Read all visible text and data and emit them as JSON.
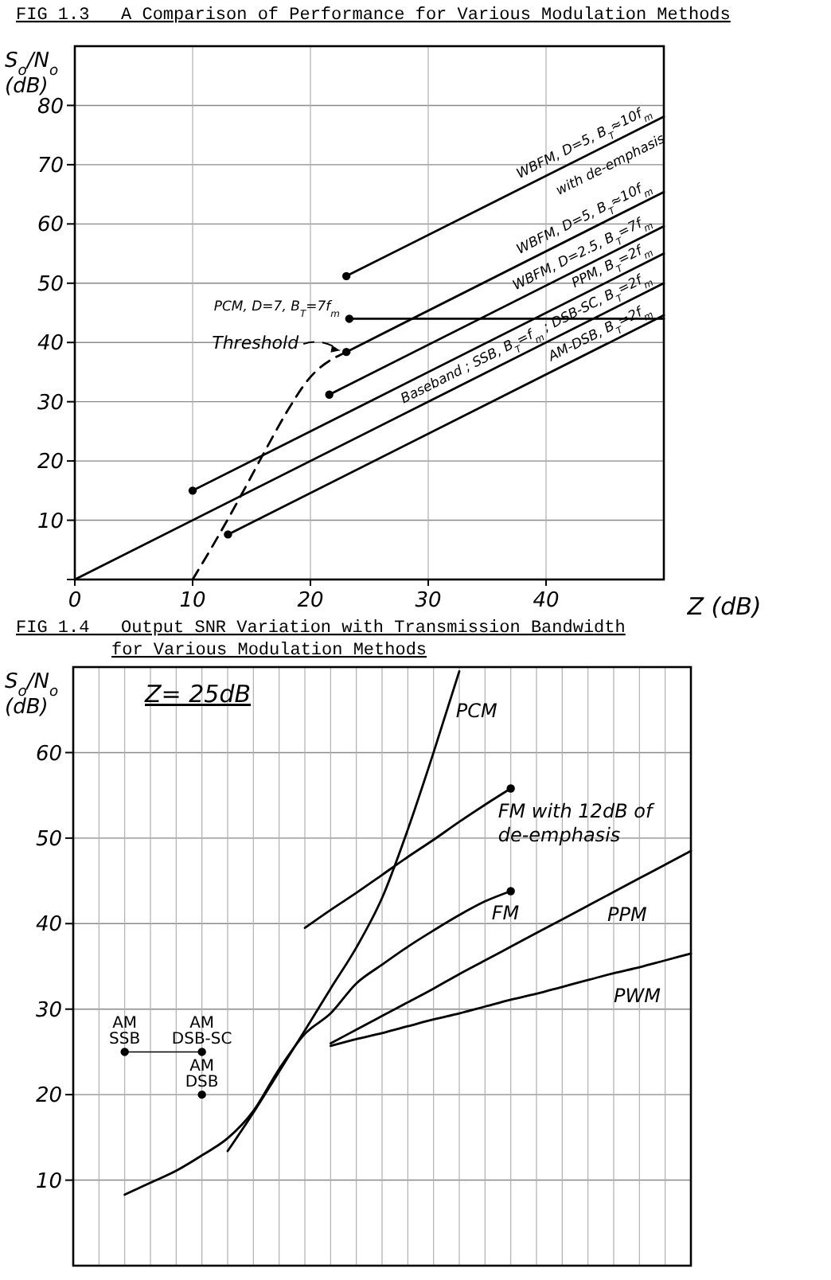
{
  "chart_data": [
    {
      "type": "line",
      "title": "FIG 1.3   A Comparison of Performance for Various Modulation Methods",
      "xlabel": "Z (dB)",
      "ylabel": "S$_{o}$/N$_{o}$ (dB)",
      "xlim": [
        0,
        50
      ],
      "ylim": [
        0,
        90
      ],
      "xticks": [
        0,
        10,
        20,
        30,
        40
      ],
      "yticks": [
        {
          "value": 0,
          "label": null
        },
        10,
        20,
        30,
        40,
        50,
        60,
        70,
        80
      ],
      "grid": true,
      "series": [
        {
          "name": "WBFM, D=5, B$_{T}$≈10f$_{m}$\nwith de-emphasis",
          "color": "#000000",
          "x": [
            23.05,
            50
          ],
          "values": [
            51.2,
            78.1
          ]
        },
        {
          "name": "WBFM, D=5, B$_{T}$≈10f$_{m}$",
          "color": "#000000",
          "x": [
            23.05,
            50
          ],
          "values": [
            38.4,
            65.4
          ]
        },
        {
          "name": "WBFM, D=2.5, B$_{T}$=7f$_{m}$",
          "color": "#000000",
          "x": [
            21.6,
            50
          ],
          "values": [
            31.2,
            59.6
          ]
        },
        {
          "name": "PPM, B$_{T}$=2f$_{m}$",
          "color": "#000000",
          "x": [
            10,
            50
          ],
          "values": [
            15,
            55
          ]
        },
        {
          "name": "PCM, D=7, B$_{T}$=7f$_{m}$",
          "color": "#000000",
          "x": [
            23.3,
            50
          ],
          "values": [
            44,
            44
          ]
        },
        {
          "name": "Baseband ; SSB, B$_{T}$=f$_{m}$ ; DSB-SC, B$_{T}$=2f$_{m}$",
          "color": "#000000",
          "x": [
            0,
            50
          ],
          "values": [
            0,
            50
          ]
        },
        {
          "name": "AM-DSB, B$_{T}$=2f$_{m}$",
          "color": "#000000",
          "x": [
            13,
            50
          ],
          "values": [
            7.6,
            44.6
          ]
        },
        {
          "name": "Threshold",
          "color": "#000000",
          "line_style": "dashed",
          "x": [
            10,
            12.2,
            14,
            16.2,
            18,
            19.8,
            23.05
          ],
          "values": [
            0,
            7.4,
            13.8,
            21.9,
            28.3,
            33.7,
            38.4
          ]
        },
        {
          "type": "scatter",
          "color": "#000000",
          "x": [
            23.05,
            23.05,
            21.6,
            10,
            23.3,
            13
          ],
          "values": [
            51.2,
            38.4,
            31.2,
            15,
            44,
            7.6
          ]
        }
      ]
    },
    {
      "type": "line",
      "title": "FIG 1.4   Output SNR Variation with Transmission Bandwidth\nfor Various Modulation Methods",
      "ylabel": "S$_{o}$/N$_{o}$ (dB)",
      "annotations": [
        "Z= 25dB"
      ],
      "categories": [
        null,
        null,
        null,
        null,
        null,
        null,
        null,
        null,
        null,
        null,
        null,
        null,
        null,
        null,
        null,
        null,
        null,
        null,
        null,
        null,
        null,
        null,
        null,
        null,
        null
      ],
      "ylim": [
        0,
        70
      ],
      "yticks": [
        10,
        20,
        30,
        40,
        50,
        60
      ],
      "grid": true,
      "tick_labels": "y",
      "series": [
        {
          "name": "PCM",
          "color": "#000000",
          "values": [
            null,
            null,
            null,
            null,
            null,
            null,
            13.4,
            17.9,
            22.7,
            27.5,
            32.4,
            37.2,
            43,
            51,
            60,
            69.5,
            null,
            null,
            null,
            null,
            null,
            null,
            null,
            null,
            null
          ]
        },
        {
          "name": "FM with 12dB of\nde-emphasis",
          "color": "#000000",
          "values": [
            null,
            null,
            null,
            null,
            null,
            null,
            null,
            null,
            null,
            39.5,
            41.6,
            43.6,
            45.7,
            47.8,
            49.8,
            51.9,
            53.9,
            55.8,
            null,
            null,
            null,
            null,
            null,
            null,
            null
          ]
        },
        {
          "name": "FM",
          "color": "#000000",
          "values": [
            null,
            null,
            8.3,
            9.7,
            11.1,
            12.9,
            14.9,
            18.1,
            23,
            27.1,
            29.5,
            33,
            35.2,
            37.3,
            39.2,
            41,
            42.6,
            43.8,
            null,
            null,
            null,
            null,
            null,
            null,
            null
          ]
        },
        {
          "name": "PPM",
          "color": "#000000",
          "values": [
            null,
            null,
            null,
            null,
            null,
            null,
            null,
            null,
            null,
            null,
            26,
            27.6,
            29.2,
            30.8,
            32.4,
            34.1,
            35.7,
            37.3,
            38.9,
            40.5,
            42.1,
            43.7,
            45.3,
            46.9,
            48.5
          ]
        },
        {
          "name": "PWM",
          "color": "#000000",
          "values": [
            null,
            null,
            null,
            null,
            null,
            null,
            null,
            null,
            null,
            null,
            25.7,
            26.5,
            27.2,
            28,
            28.8,
            29.5,
            30.3,
            31.1,
            31.8,
            32.6,
            33.4,
            34.2,
            34.9,
            35.7,
            36.5
          ]
        },
        {
          "color": "#000000",
          "values": [
            null,
            null,
            25,
            25,
            25,
            25,
            null,
            null,
            null,
            null,
            null,
            null,
            null,
            null,
            null,
            null,
            null,
            null,
            null,
            null,
            null,
            null,
            null,
            null,
            null
          ]
        },
        {
          "type": "scatter",
          "name": "AM\nSSB",
          "color": "#000000",
          "values": [
            null,
            null,
            25,
            null,
            null,
            null,
            null,
            null,
            null,
            null,
            null,
            null,
            null,
            null,
            null,
            null,
            null,
            null,
            null,
            null,
            null,
            null,
            null,
            null,
            null
          ]
        },
        {
          "type": "scatter",
          "name": "AM\nDSB-SC",
          "color": "#000000",
          "values": [
            null,
            null,
            null,
            null,
            null,
            25,
            null,
            null,
            null,
            null,
            null,
            null,
            null,
            null,
            null,
            null,
            null,
            null,
            null,
            null,
            null,
            null,
            null,
            null,
            null
          ]
        },
        {
          "type": "scatter",
          "name": "AM\nDSB",
          "color": "#000000",
          "values": [
            null,
            null,
            null,
            null,
            null,
            20,
            null,
            null,
            null,
            null,
            null,
            null,
            null,
            null,
            null,
            null,
            null,
            null,
            null,
            null,
            null,
            null,
            null,
            null,
            null
          ]
        },
        {
          "type": "scatter",
          "color": "#000000",
          "values": [
            null,
            null,
            null,
            null,
            null,
            null,
            null,
            null,
            null,
            null,
            null,
            null,
            null,
            null,
            null,
            null,
            null,
            43.8,
            null,
            null,
            null,
            null,
            null,
            null,
            null
          ]
        },
        {
          "type": "scatter",
          "color": "#000000",
          "values": [
            null,
            null,
            null,
            null,
            null,
            null,
            null,
            null,
            null,
            null,
            null,
            null,
            null,
            null,
            null,
            null,
            null,
            55.8,
            null,
            null,
            null,
            null,
            null,
            null,
            null
          ]
        }
      ]
    }
  ]
}
